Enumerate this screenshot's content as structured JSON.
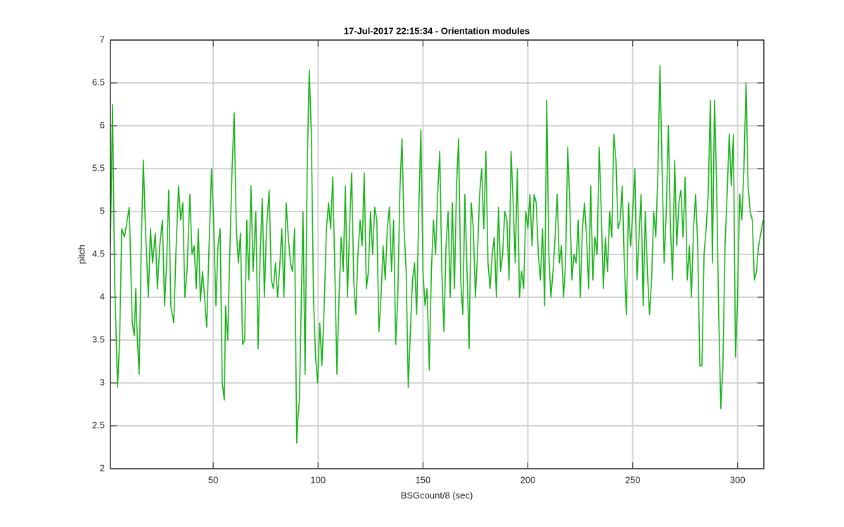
{
  "chart_data": {
    "type": "line",
    "title": "17-Jul-2017 22:15:34 - Orientation modules",
    "xlabel": "BSGcount/8 (sec)",
    "ylabel": "pitch",
    "color": "#19b319",
    "grid": true,
    "xlim": [
      1,
      312.5
    ],
    "ylim": [
      2,
      7
    ],
    "xticks": [
      50,
      100,
      150,
      200,
      250,
      300
    ],
    "yticks": [
      2,
      2.5,
      3,
      3.5,
      4,
      4.5,
      5,
      5.5,
      6,
      6.5,
      7
    ],
    "x": [
      1,
      2.0,
      3.0,
      4.4,
      5.4,
      6.4,
      7.7,
      9.0,
      10.0,
      11.4,
      12.4,
      13.1,
      13.7,
      14.7,
      15.7,
      16.7,
      17.7,
      19.1,
      20.1,
      21.1,
      22.4,
      23.4,
      24.5,
      25.8,
      26.8,
      27.8,
      28.8,
      29.8,
      31.2,
      32.2,
      33.5,
      34.5,
      35.5,
      36.5,
      37.5,
      38.9,
      39.9,
      40.9,
      41.9,
      42.9,
      43.9,
      44.9,
      45.9,
      46.9,
      47.9,
      49.2,
      50.2,
      51.3,
      52.3,
      53.3,
      54.3,
      55.3,
      55.9,
      56.9,
      57.9,
      59.0,
      60.0,
      61.0,
      62.0,
      63.0,
      64.0,
      65.0,
      66.0,
      67.0,
      68.0,
      69.0,
      70.3,
      71.4,
      72.4,
      73.4,
      74.4,
      75.4,
      76.7,
      77.7,
      78.7,
      79.7,
      80.7,
      81.7,
      82.7,
      83.7,
      84.8,
      85.8,
      86.8,
      87.8,
      88.8,
      89.8,
      90.4,
      91.1,
      91.8,
      92.8,
      93.8,
      94.8,
      95.8,
      96.8,
      97.8,
      98.8,
      99.8,
      100.8,
      101.8,
      102.8,
      104,
      105,
      106,
      107,
      108,
      109,
      110,
      111,
      112,
      113,
      114,
      115,
      116,
      117,
      118,
      119,
      120,
      121,
      122,
      123,
      124,
      125,
      126,
      127,
      128,
      129,
      130,
      131,
      132,
      133,
      134,
      135,
      136,
      137,
      138,
      139,
      140,
      141,
      142,
      143,
      144,
      145,
      146,
      147,
      148,
      149,
      150,
      151,
      152,
      153,
      154,
      155,
      156,
      157,
      158,
      159,
      160,
      161,
      162,
      163,
      164,
      165,
      166,
      167,
      168,
      169,
      170,
      171,
      172,
      173,
      174,
      175,
      176,
      177,
      178,
      179,
      180,
      181,
      182,
      183,
      184,
      185,
      186,
      187,
      188,
      189,
      190,
      191,
      192,
      193,
      194,
      195,
      196,
      197,
      198,
      199,
      200,
      201,
      202,
      203,
      204,
      205,
      206,
      207,
      208,
      209,
      210,
      211,
      212,
      213,
      214,
      215,
      216,
      217,
      218,
      219,
      220,
      221,
      222,
      223,
      224,
      225,
      226,
      227,
      228,
      229,
      230,
      231,
      232,
      233,
      234,
      235,
      236,
      237,
      238,
      239,
      240,
      241,
      242,
      243,
      244,
      245,
      246,
      247,
      248,
      249,
      250,
      251,
      252,
      253,
      254,
      255,
      256,
      257,
      258,
      259,
      260,
      261,
      262,
      263,
      264,
      265,
      266,
      267,
      268,
      269,
      270,
      271,
      272,
      273,
      274,
      275,
      276,
      277,
      278,
      279,
      280,
      281,
      282,
      283,
      284,
      285,
      286,
      287,
      288,
      289,
      290,
      291,
      292,
      293,
      294,
      295,
      296,
      297,
      298,
      299,
      300,
      301,
      302,
      303,
      304,
      305,
      306,
      307,
      308,
      309,
      310,
      312.2
    ],
    "values": [
      4.6,
      6.25,
      4.2,
      2.95,
      3.5,
      4.8,
      4.7,
      4.9,
      5.05,
      3.7,
      3.55,
      4.1,
      3.6,
      3.1,
      4.6,
      5.6,
      4.8,
      4.0,
      4.8,
      4.4,
      4.75,
      4.1,
      4.6,
      4.9,
      3.9,
      4.4,
      5.25,
      3.9,
      3.7,
      4.5,
      5.3,
      4.9,
      5.1,
      4.0,
      4.3,
      5.2,
      4.5,
      4.6,
      4.1,
      4.8,
      3.95,
      4.3,
      4.0,
      3.65,
      4.5,
      5.5,
      4.9,
      3.9,
      4.6,
      4.8,
      3.0,
      2.8,
      3.9,
      3.5,
      4.5,
      5.5,
      6.15,
      4.8,
      4.4,
      4.75,
      3.45,
      3.5,
      4.9,
      4.2,
      5.3,
      4.3,
      5.0,
      3.4,
      4.5,
      5.15,
      4.0,
      4.8,
      5.25,
      4.2,
      4.1,
      4.4,
      4.0,
      4.35,
      4.8,
      4.0,
      5.1,
      4.7,
      4.4,
      4.3,
      4.8,
      2.3,
      2.6,
      2.8,
      3.7,
      5.0,
      3.1,
      5.5,
      6.65,
      5.9,
      4.0,
      3.3,
      3.0,
      3.7,
      3.2,
      3.8,
      4.8,
      5.1,
      4.8,
      5.4,
      4.3,
      3.1,
      4.0,
      4.7,
      4.3,
      5.3,
      4.0,
      4.8,
      5.45,
      4.2,
      3.8,
      4.5,
      4.9,
      4.6,
      5.45,
      4.1,
      4.3,
      5.0,
      4.5,
      5.05,
      4.9,
      3.6,
      4.0,
      4.6,
      4.2,
      4.8,
      5.05,
      4.3,
      4.9,
      3.45,
      4.0,
      5.25,
      5.85,
      4.8,
      4.3,
      2.95,
      3.6,
      4.2,
      4.4,
      3.8,
      5.0,
      5.95,
      4.3,
      3.9,
      4.1,
      3.15,
      4.3,
      4.9,
      4.5,
      5.2,
      5.7,
      4.3,
      3.6,
      4.6,
      5.0,
      4.0,
      5.1,
      4.1,
      5.3,
      5.85,
      4.2,
      3.8,
      5.2,
      4.3,
      3.4,
      5.1,
      4.8,
      4.0,
      4.5,
      5.2,
      5.5,
      4.8,
      5.7,
      4.4,
      4.1,
      4.5,
      4.7,
      4.0,
      5.05,
      4.3,
      4.5,
      5.0,
      4.9,
      4.2,
      5.7,
      5.1,
      4.4,
      5.5,
      4.0,
      4.3,
      4.1,
      5.0,
      4.8,
      5.2,
      4.6,
      5.2,
      5.1,
      4.5,
      4.2,
      4.8,
      3.9,
      6.3,
      4.5,
      4.0,
      4.3,
      4.7,
      5.2,
      4.4,
      4.6,
      4.0,
      4.4,
      5.75,
      5.1,
      4.2,
      4.5,
      4.4,
      4.9,
      4.0,
      4.8,
      5.1,
      4.7,
      4.1,
      5.3,
      4.2,
      4.7,
      4.5,
      5.75,
      5.0,
      4.1,
      4.7,
      4.3,
      5.0,
      4.7,
      5.9,
      5.6,
      4.8,
      4.9,
      5.3,
      4.4,
      3.8,
      5.1,
      4.6,
      5.0,
      5.5,
      4.2,
      4.7,
      5.2,
      3.9,
      5.0,
      4.3,
      3.8,
      4.2,
      5.0,
      4.7,
      5.45,
      6.7,
      5.5,
      4.4,
      5.0,
      6.0,
      4.8,
      4.2,
      5.6,
      4.6,
      5.1,
      5.25,
      4.7,
      5.4,
      4.2,
      4.6,
      4.0,
      4.8,
      5.2,
      4.6,
      3.2,
      3.2,
      4.5,
      4.8,
      5.2,
      6.3,
      4.4,
      6.3,
      5.3,
      3.8,
      2.7,
      3.2,
      4.6,
      5.2,
      5.9,
      5.3,
      5.9,
      3.3,
      4.0,
      5.2,
      4.9,
      5.5,
      6.5,
      5.3,
      5.0,
      4.9,
      4.2,
      4.3,
      4.6,
      4.9
    ]
  }
}
